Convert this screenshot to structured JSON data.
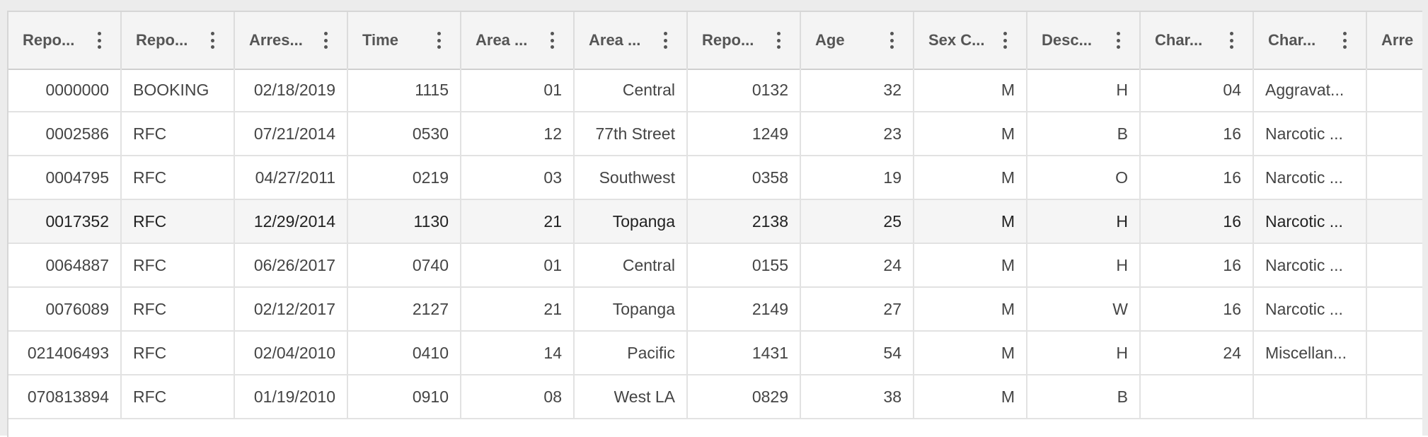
{
  "grid": {
    "columns": [
      {
        "label": "Repo...",
        "align": "num"
      },
      {
        "label": "Repo...",
        "align": "txt"
      },
      {
        "label": "Arres...",
        "align": "num"
      },
      {
        "label": "Time",
        "align": "num"
      },
      {
        "label": "Area ...",
        "align": "num"
      },
      {
        "label": "Area ...",
        "align": "num"
      },
      {
        "label": "Repo...",
        "align": "num"
      },
      {
        "label": "Age",
        "align": "num"
      },
      {
        "label": "Sex C...",
        "align": "num"
      },
      {
        "label": "Desc...",
        "align": "num"
      },
      {
        "label": "Char...",
        "align": "num"
      },
      {
        "label": "Char...",
        "align": "txt"
      },
      {
        "label": "Arre",
        "align": "txt"
      }
    ],
    "rows": [
      [
        "0000000",
        "BOOKING",
        "02/18/2019",
        "1115",
        "01",
        "Central",
        "0132",
        "32",
        "M",
        "H",
        "04",
        "Aggravat...",
        ""
      ],
      [
        "0002586",
        "RFC",
        "07/21/2014",
        "0530",
        "12",
        "77th Street",
        "1249",
        "23",
        "M",
        "B",
        "16",
        "Narcotic ...",
        ""
      ],
      [
        "0004795",
        "RFC",
        "04/27/2011",
        "0219",
        "03",
        "Southwest",
        "0358",
        "19",
        "M",
        "O",
        "16",
        "Narcotic ...",
        ""
      ],
      [
        "0017352",
        "RFC",
        "12/29/2014",
        "1130",
        "21",
        "Topanga",
        "2138",
        "25",
        "M",
        "H",
        "16",
        "Narcotic ...",
        ""
      ],
      [
        "0064887",
        "RFC",
        "06/26/2017",
        "0740",
        "01",
        "Central",
        "0155",
        "24",
        "M",
        "H",
        "16",
        "Narcotic ...",
        ""
      ],
      [
        "0076089",
        "RFC",
        "02/12/2017",
        "2127",
        "21",
        "Topanga",
        "2149",
        "27",
        "M",
        "W",
        "16",
        "Narcotic ...",
        ""
      ],
      [
        "021406493",
        "RFC",
        "02/04/2010",
        "0410",
        "14",
        "Pacific",
        "1431",
        "54",
        "M",
        "H",
        "24",
        "Miscellan...",
        ""
      ],
      [
        "070813894",
        "RFC",
        "01/19/2010",
        "0910",
        "08",
        "West LA",
        "0829",
        "38",
        "M",
        "B",
        "",
        "",
        ""
      ]
    ],
    "hovered_row_index": 3,
    "colors": {
      "header_bg": "#f4f4f4",
      "header_text": "#555555",
      "cell_text": "#444444",
      "grid_line": "#e2e2e2",
      "hover_bg": "#f5f5f5"
    }
  }
}
